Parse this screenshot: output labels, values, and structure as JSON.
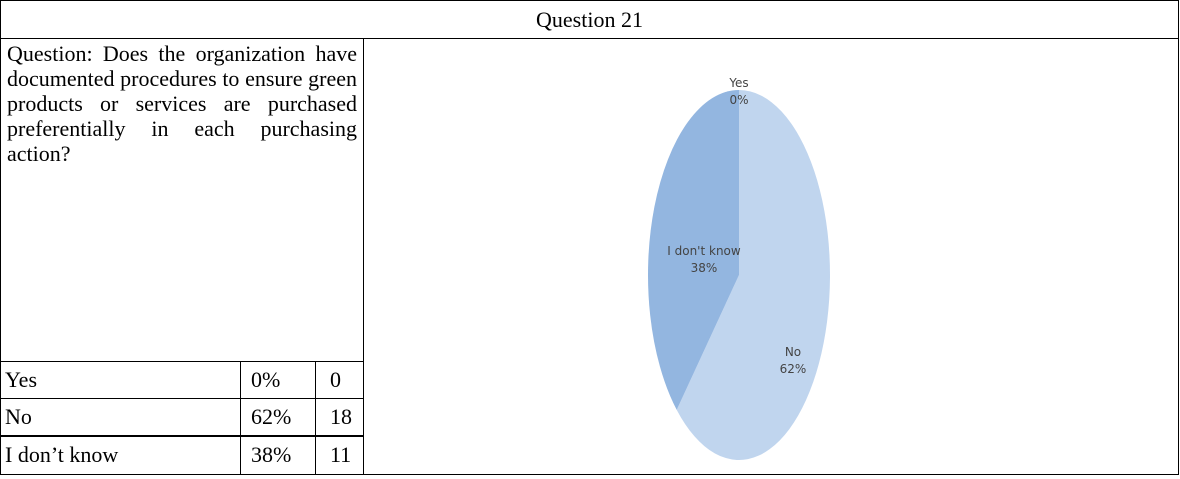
{
  "header": {
    "title": "Question 21"
  },
  "question": "Question: Does the organization have documented procedures to ensure green products or services are purchased preferentially in each purchasing action?",
  "table": {
    "rows": [
      [
        "Yes",
        "0%",
        0
      ],
      [
        "No",
        "62%",
        18
      ],
      [
        "I don’t know",
        "38%",
        11
      ]
    ]
  },
  "chart_data": {
    "type": "pie",
    "categories": [
      "Yes",
      "No",
      "I don't know"
    ],
    "values": [
      0,
      62,
      38
    ],
    "value_labels": [
      "0%",
      "62%",
      "38%"
    ],
    "colors": [
      "#4f81bd",
      "#c0d5ee",
      "#93b6e0"
    ]
  }
}
